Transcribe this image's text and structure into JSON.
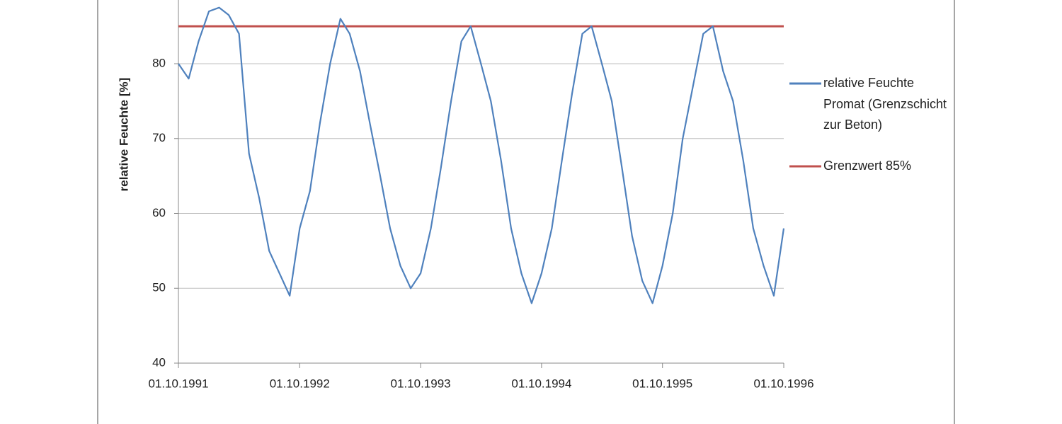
{
  "chart_data": {
    "type": "line",
    "ylabel": "relative Feuchte [%]",
    "x": [
      "01.10.1991",
      "01.11.1991",
      "01.12.1991",
      "01.01.1992",
      "01.02.1992",
      "01.03.1992",
      "01.04.1992",
      "01.05.1992",
      "01.06.1992",
      "01.07.1992",
      "01.08.1992",
      "01.09.1992",
      "01.10.1992",
      "01.11.1992",
      "01.12.1992",
      "01.01.1993",
      "01.02.1993",
      "01.03.1993",
      "01.04.1993",
      "01.05.1993",
      "01.06.1993",
      "01.07.1993",
      "01.08.1993",
      "01.09.1993",
      "01.10.1993",
      "01.11.1993",
      "01.12.1993",
      "01.01.1994",
      "01.02.1994",
      "01.03.1994",
      "01.04.1994",
      "01.05.1994",
      "01.06.1994",
      "01.07.1994",
      "01.08.1994",
      "01.09.1994",
      "01.10.1994",
      "01.11.1994",
      "01.12.1994",
      "01.01.1995",
      "01.02.1995",
      "01.03.1995",
      "01.04.1995",
      "01.05.1995",
      "01.06.1995",
      "01.07.1995",
      "01.08.1995",
      "01.09.1995",
      "01.10.1995",
      "01.11.1995",
      "01.12.1995",
      "01.01.1996",
      "01.02.1996",
      "01.03.1996",
      "01.04.1996",
      "01.05.1996",
      "01.06.1996",
      "01.07.1996",
      "01.08.1996",
      "01.09.1996",
      "01.10.1996"
    ],
    "series": [
      {
        "name": "relative Feuchte Promat (Grenzschicht zur Beton)",
        "color": "#4f81bd",
        "values": [
          80,
          78,
          83,
          87,
          87.5,
          86.5,
          84,
          68,
          62,
          55,
          52,
          49,
          58,
          63,
          72,
          80,
          86,
          84,
          79,
          72,
          65,
          58,
          53,
          50,
          52,
          58,
          66,
          75,
          83,
          85,
          80,
          75,
          67,
          58,
          52,
          48,
          52,
          58,
          67,
          76,
          84,
          85,
          80,
          75,
          66,
          57,
          51,
          48,
          53,
          60,
          70,
          77,
          84,
          85,
          79,
          75,
          67,
          58,
          53,
          49,
          58
        ]
      },
      {
        "name": "Grenzwert 85%",
        "color": "#c0504d",
        "values": [
          85,
          85,
          85,
          85,
          85,
          85,
          85,
          85,
          85,
          85,
          85,
          85,
          85,
          85,
          85,
          85,
          85,
          85,
          85,
          85,
          85,
          85,
          85,
          85,
          85,
          85,
          85,
          85,
          85,
          85,
          85,
          85,
          85,
          85,
          85,
          85,
          85,
          85,
          85,
          85,
          85,
          85,
          85,
          85,
          85,
          85,
          85,
          85,
          85,
          85,
          85,
          85,
          85,
          85,
          85,
          85,
          85,
          85,
          85,
          85,
          85
        ]
      }
    ],
    "xlim": [
      "01.10.1991",
      "01.10.1996"
    ],
    "xticks": [
      "01.10.1991",
      "01.10.1992",
      "01.10.1993",
      "01.10.1994",
      "01.10.1995",
      "01.10.1996"
    ],
    "ylim": [
      40,
      90
    ],
    "yticks": [
      40,
      50,
      60,
      70,
      80
    ],
    "grid": true
  }
}
